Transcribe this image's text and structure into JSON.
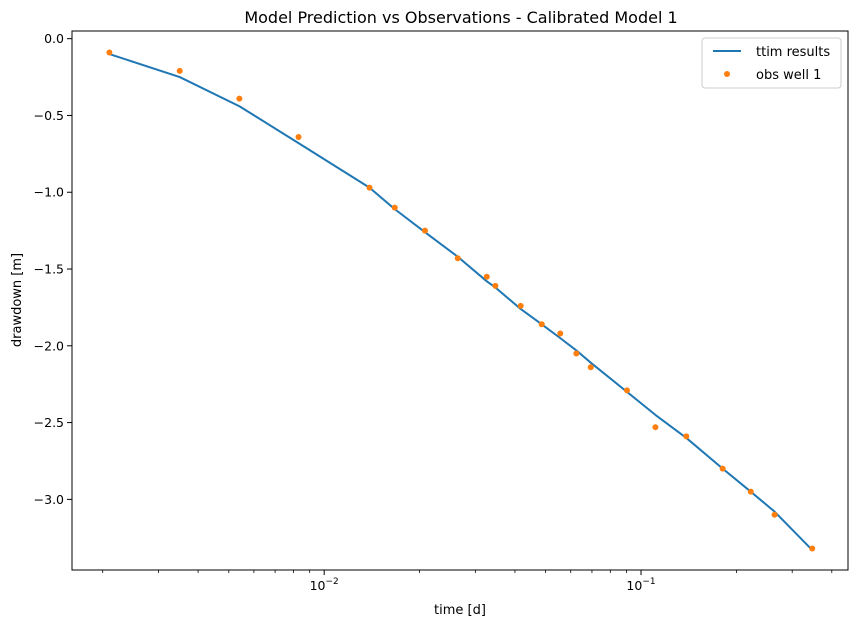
{
  "chart_data": {
    "type": "line",
    "title": "Model Prediction vs Observations - Calibrated Model 1",
    "xlabel": "time [d]",
    "ylabel": "drawdown [m]",
    "xscale": "log",
    "xlim": [
      0.0016,
      0.45
    ],
    "ylim": [
      -3.46,
      0.05
    ],
    "grid": false,
    "legend_position": "top-right",
    "x_major_ticks": [
      {
        "value": 0.01,
        "base": "10",
        "exp": "−2"
      },
      {
        "value": 0.1,
        "base": "10",
        "exp": "−1"
      }
    ],
    "x_minor_ticks": [
      0.002,
      0.003,
      0.004,
      0.005,
      0.006,
      0.007,
      0.008,
      0.009,
      0.02,
      0.03,
      0.04,
      0.05,
      0.06,
      0.07,
      0.08,
      0.09,
      0.2,
      0.3,
      0.4
    ],
    "y_ticks": [
      {
        "value": 0.0,
        "label": "0.0"
      },
      {
        "value": -0.5,
        "label": "−0.5"
      },
      {
        "value": -1.0,
        "label": "−1.0"
      },
      {
        "value": -1.5,
        "label": "−1.5"
      },
      {
        "value": -2.0,
        "label": "−2.0"
      },
      {
        "value": -2.5,
        "label": "−2.5"
      },
      {
        "value": -3.0,
        "label": "−3.0"
      }
    ],
    "series": [
      {
        "name": "ttim results",
        "kind": "line",
        "color": "#1f77b4",
        "x": [
          0.0021,
          0.0035,
          0.0054,
          0.0083,
          0.0139,
          0.0167,
          0.0208,
          0.0264,
          0.0326,
          0.0347,
          0.0417,
          0.0486,
          0.0556,
          0.0625,
          0.0694,
          0.0903,
          0.111,
          0.139,
          0.181,
          0.222,
          0.264,
          0.347
        ],
        "y": [
          -0.1,
          -0.25,
          -0.44,
          -0.68,
          -0.97,
          -1.11,
          -1.26,
          -1.42,
          -1.58,
          -1.62,
          -1.76,
          -1.86,
          -1.95,
          -2.03,
          -2.11,
          -2.3,
          -2.45,
          -2.6,
          -2.8,
          -2.95,
          -3.08,
          -3.33
        ]
      },
      {
        "name": "obs well 1",
        "kind": "scatter",
        "color": "#ff7f0e",
        "x": [
          0.0021,
          0.0035,
          0.0054,
          0.0083,
          0.0139,
          0.0167,
          0.0208,
          0.0264,
          0.0326,
          0.0347,
          0.0417,
          0.0486,
          0.0556,
          0.0625,
          0.0694,
          0.0903,
          0.111,
          0.139,
          0.181,
          0.222,
          0.264,
          0.347
        ],
        "y": [
          -0.09,
          -0.21,
          -0.39,
          -0.64,
          -0.97,
          -1.1,
          -1.25,
          -1.43,
          -1.55,
          -1.61,
          -1.74,
          -1.86,
          -1.92,
          -2.05,
          -2.14,
          -2.29,
          -2.53,
          -2.59,
          -2.8,
          -2.95,
          -3.1,
          -3.32
        ]
      }
    ]
  }
}
